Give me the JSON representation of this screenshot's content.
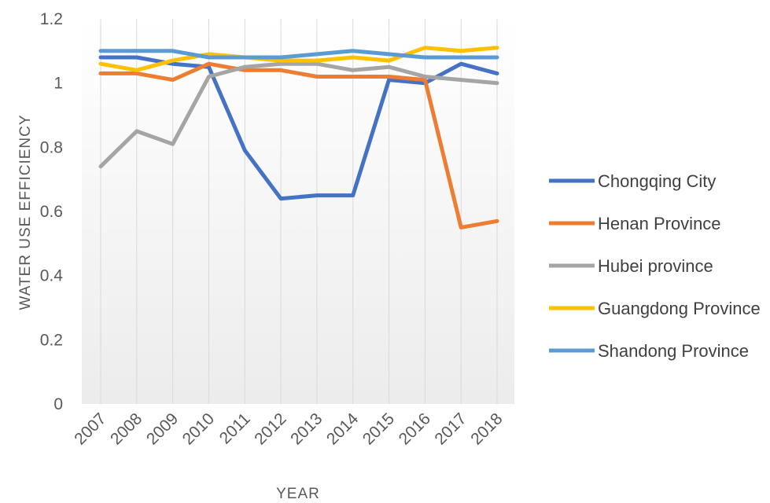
{
  "chart_data": {
    "type": "line",
    "title": "",
    "xlabel": "YEAR",
    "ylabel": "WATER USE EFFICIENCY",
    "categories": [
      "2007",
      "2008",
      "2009",
      "2010",
      "2011",
      "2012",
      "2013",
      "2014",
      "2015",
      "2016",
      "2017",
      "2018"
    ],
    "ylim": [
      0,
      1.2
    ],
    "yticks": [
      0,
      0.2,
      0.4,
      0.6,
      0.8,
      1,
      1.2
    ],
    "ytick_labels": [
      "0",
      "0.2",
      "0.4",
      "0.6",
      "0.8",
      "1",
      "1.2"
    ],
    "grid": "vertical",
    "legend_position": "right",
    "series": [
      {
        "name": "Chongqing City",
        "color": "#4472C4",
        "values": [
          1.08,
          1.08,
          1.06,
          1.05,
          0.79,
          0.64,
          0.65,
          0.65,
          1.01,
          1.0,
          1.06,
          1.03
        ]
      },
      {
        "name": "Henan Province",
        "color": "#ED7D31",
        "values": [
          1.03,
          1.03,
          1.01,
          1.06,
          1.04,
          1.04,
          1.02,
          1.02,
          1.02,
          1.01,
          0.55,
          0.57
        ]
      },
      {
        "name": "Hubei province",
        "color": "#A5A5A5",
        "values": [
          0.74,
          0.85,
          0.81,
          1.02,
          1.05,
          1.06,
          1.06,
          1.04,
          1.05,
          1.02,
          1.01,
          1.0
        ]
      },
      {
        "name": "Guangdong Province",
        "color": "#FFC000",
        "values": [
          1.06,
          1.04,
          1.07,
          1.09,
          1.08,
          1.07,
          1.07,
          1.08,
          1.07,
          1.11,
          1.1,
          1.11
        ]
      },
      {
        "name": "Shandong Province",
        "color": "#5B9BD5",
        "values": [
          1.1,
          1.1,
          1.1,
          1.08,
          1.08,
          1.08,
          1.09,
          1.1,
          1.09,
          1.08,
          1.08,
          1.08
        ]
      }
    ]
  }
}
